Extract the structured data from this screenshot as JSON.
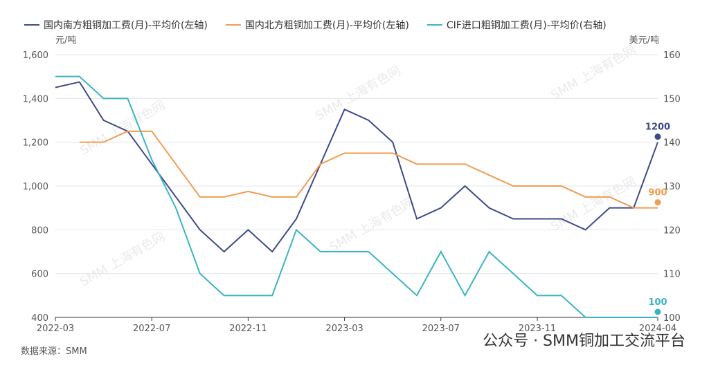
{
  "chart_data": {
    "type": "line",
    "y_label": "元/吨",
    "y2_label": "美元/吨",
    "x": [
      "2022-03",
      "2022-04",
      "2022-05",
      "2022-06",
      "2022-07",
      "2022-08",
      "2022-09",
      "2022-10",
      "2022-11",
      "2022-12",
      "2023-01",
      "2023-02",
      "2023-03",
      "2023-04",
      "2023-05",
      "2023-06",
      "2023-07",
      "2023-08",
      "2023-09",
      "2023-10",
      "2023-11",
      "2023-12",
      "2024-01",
      "2024-02",
      "2024-03",
      "2024-04"
    ],
    "xticks": [
      "2022-03",
      "2022-07",
      "2022-11",
      "2023-03",
      "2023-07",
      "2023-11",
      "2024-04"
    ],
    "ylim": [
      400,
      1600
    ],
    "yticks": [
      {
        "value": 400,
        "label": "400"
      },
      {
        "value": 600,
        "label": "600"
      },
      {
        "value": 800,
        "label": "800"
      },
      {
        "value": 1000,
        "label": "1,000"
      },
      {
        "value": 1200,
        "label": "1,200"
      },
      {
        "value": 1400,
        "label": "1,400"
      },
      {
        "value": 1600,
        "label": "1,600"
      }
    ],
    "y2lim": [
      100,
      160
    ],
    "y2ticks": [
      100,
      110,
      120,
      130,
      140,
      150,
      160
    ],
    "grid": true,
    "legend": "top",
    "series": [
      {
        "name": "国内南方粗铜加工费(月)-平均价(左轴)",
        "color": "#3d4a8a",
        "values": [
          1450,
          1475,
          1300,
          1250,
          1100,
          950,
          800,
          700,
          800,
          700,
          850,
          1100,
          1350,
          1300,
          1200,
          850,
          900,
          1000,
          900,
          850,
          850,
          850,
          800,
          900,
          900,
          1200
        ]
      },
      {
        "name": "国内北方粗铜加工费(月)-平均价(左轴)",
        "color": "#f19c4f",
        "values": [
          null,
          1200,
          1200,
          1250,
          1250,
          1100,
          950,
          950,
          975,
          950,
          950,
          1100,
          1150,
          1150,
          1150,
          1100,
          1100,
          1100,
          1050,
          1000,
          1000,
          1000,
          950,
          950,
          900,
          900
        ]
      },
      {
        "name": "CIF进口粗铜加工费(月)-平均价(右轴)",
        "color": "#3ab4c4",
        "axis": "y2",
        "values": [
          155,
          155,
          150,
          150,
          136,
          125,
          110,
          105,
          105,
          105,
          120,
          115,
          115,
          115,
          110,
          105,
          115,
          105,
          115,
          110,
          105,
          105,
          100,
          100,
          100,
          100
        ]
      }
    ],
    "watermark": "SMM 上海有色网",
    "source": "数据来源：SMM",
    "footer": "公众号 · SMM铜加工交流平台"
  }
}
